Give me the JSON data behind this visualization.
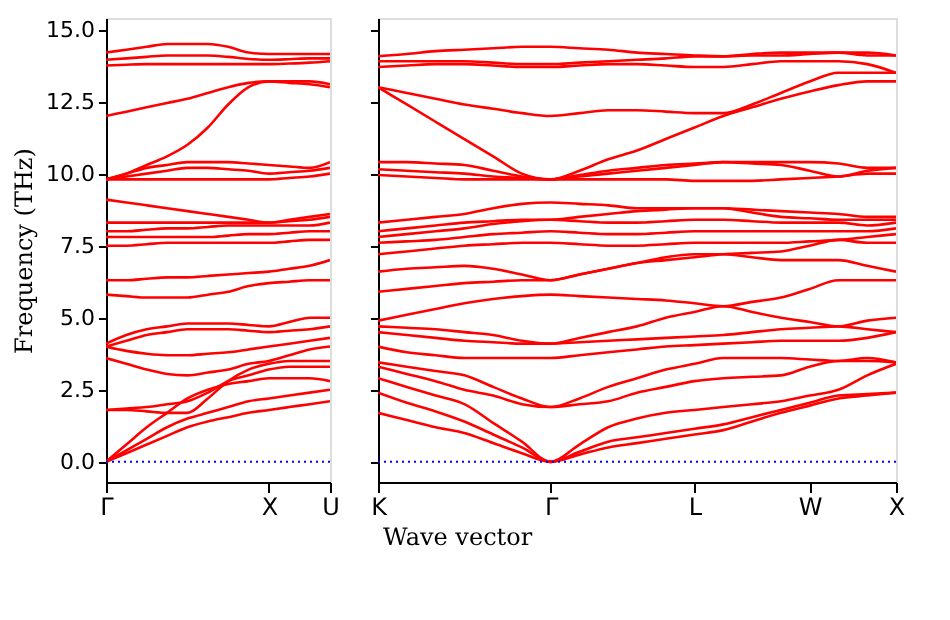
{
  "chart_data": [
    {
      "type": "line",
      "ylabel": "Frequency (THz)",
      "xlabel": "Wave vector",
      "categories": [
        "Γ",
        null,
        null,
        null,
        null,
        null,
        null,
        null,
        "X",
        null,
        null,
        "U"
      ],
      "ylim": [
        -0.7,
        15.4
      ],
      "yticks": [
        {
          "value": 0,
          "label": "0.0"
        },
        {
          "value": 2.5,
          "label": "2.5"
        },
        {
          "value": 5,
          "label": "5.0"
        },
        {
          "value": 7.5,
          "label": "7.5"
        },
        {
          "value": 10,
          "label": "10.0"
        },
        {
          "value": 12.5,
          "label": "12.5"
        },
        {
          "value": 15,
          "label": "15.0"
        }
      ],
      "grid": false,
      "legend": false,
      "marker": "none",
      "line_style": "solid",
      "ref_lines": [
        {
          "axis": "y",
          "value": 0,
          "color": "#0000ff",
          "line_style": "dotted"
        }
      ],
      "series": [
        {
          "color": "#ff0000",
          "values": [
            0,
            0.3,
            0.6,
            0.9,
            1.2,
            1.4,
            1.55,
            1.7,
            1.8,
            1.9,
            2.0,
            2.1
          ]
        },
        {
          "color": "#ff0000",
          "values": [
            0,
            0.4,
            0.8,
            1.2,
            1.5,
            1.7,
            1.9,
            2.1,
            2.2,
            2.3,
            2.4,
            2.5
          ]
        },
        {
          "color": "#ff0000",
          "values": [
            0,
            0.6,
            1.2,
            1.7,
            2.2,
            2.5,
            2.7,
            2.8,
            2.9,
            2.9,
            2.9,
            2.8
          ]
        },
        {
          "color": "#ff0000",
          "values": [
            1.8,
            1.85,
            1.9,
            2.0,
            2.1,
            2.4,
            2.8,
            3.0,
            3.2,
            3.3,
            3.3,
            3.3
          ]
        },
        {
          "color": "#ff0000",
          "values": [
            1.8,
            1.8,
            1.75,
            1.7,
            1.7,
            2.2,
            2.8,
            3.2,
            3.4,
            3.5,
            3.5,
            3.5
          ]
        },
        {
          "color": "#ff0000",
          "values": [
            3.6,
            3.4,
            3.2,
            3.05,
            3.0,
            3.1,
            3.2,
            3.4,
            3.5,
            3.7,
            3.9,
            4.0
          ]
        },
        {
          "color": "#ff0000",
          "values": [
            4.0,
            3.85,
            3.75,
            3.7,
            3.7,
            3.75,
            3.8,
            3.9,
            4.0,
            4.1,
            4.2,
            4.3
          ]
        },
        {
          "color": "#ff0000",
          "values": [
            4.0,
            4.2,
            4.4,
            4.5,
            4.6,
            4.6,
            4.6,
            4.55,
            4.5,
            4.55,
            4.6,
            4.7
          ]
        },
        {
          "color": "#ff0000",
          "values": [
            4.1,
            4.4,
            4.6,
            4.7,
            4.8,
            4.8,
            4.8,
            4.75,
            4.7,
            4.85,
            5.0,
            5.0
          ]
        },
        {
          "color": "#ff0000",
          "values": [
            5.8,
            5.75,
            5.7,
            5.7,
            5.7,
            5.8,
            5.9,
            6.1,
            6.2,
            6.25,
            6.3,
            6.3
          ]
        },
        {
          "color": "#ff0000",
          "values": [
            6.3,
            6.3,
            6.35,
            6.4,
            6.4,
            6.45,
            6.5,
            6.55,
            6.6,
            6.7,
            6.8,
            7.0
          ]
        },
        {
          "color": "#ff0000",
          "values": [
            7.5,
            7.5,
            7.55,
            7.6,
            7.6,
            7.6,
            7.6,
            7.6,
            7.6,
            7.65,
            7.7,
            7.7
          ]
        },
        {
          "color": "#ff0000",
          "values": [
            7.8,
            7.8,
            7.8,
            7.8,
            7.8,
            7.8,
            7.85,
            7.9,
            7.9,
            7.95,
            8.0,
            8.0
          ]
        },
        {
          "color": "#ff0000",
          "values": [
            8.0,
            8.0,
            8.05,
            8.1,
            8.1,
            8.15,
            8.2,
            8.2,
            8.2,
            8.2,
            8.2,
            8.3
          ]
        },
        {
          "color": "#ff0000",
          "values": [
            8.3,
            8.3,
            8.3,
            8.3,
            8.3,
            8.3,
            8.3,
            8.3,
            8.3,
            8.35,
            8.4,
            8.5
          ]
        },
        {
          "color": "#ff0000",
          "values": [
            9.1,
            9.0,
            8.9,
            8.8,
            8.7,
            8.6,
            8.5,
            8.4,
            8.3,
            8.4,
            8.5,
            8.6
          ]
        },
        {
          "color": "#ff0000",
          "values": [
            9.8,
            9.8,
            9.8,
            9.8,
            9.8,
            9.8,
            9.8,
            9.8,
            9.8,
            9.85,
            9.9,
            10.0
          ]
        },
        {
          "color": "#ff0000",
          "values": [
            9.8,
            9.9,
            10.0,
            10.1,
            10.2,
            10.2,
            10.15,
            10.1,
            10.0,
            10.05,
            10.1,
            10.2
          ]
        },
        {
          "color": "#ff0000",
          "values": [
            9.8,
            10.0,
            10.2,
            10.3,
            10.4,
            10.4,
            10.4,
            10.35,
            10.3,
            10.25,
            10.2,
            10.4
          ]
        },
        {
          "color": "#ff0000",
          "values": [
            9.8,
            10.0,
            10.3,
            10.6,
            11.0,
            11.6,
            12.4,
            13.0,
            13.2,
            13.2,
            13.2,
            13.1
          ]
        },
        {
          "color": "#ff0000",
          "values": [
            12.0,
            12.15,
            12.3,
            12.45,
            12.6,
            12.8,
            13.0,
            13.15,
            13.2,
            13.15,
            13.1,
            13.0
          ]
        },
        {
          "color": "#ff0000",
          "values": [
            13.75,
            13.78,
            13.8,
            13.8,
            13.8,
            13.8,
            13.8,
            13.8,
            13.8,
            13.82,
            13.85,
            13.9
          ]
        },
        {
          "color": "#ff0000",
          "values": [
            13.95,
            14.0,
            14.05,
            14.1,
            14.1,
            14.1,
            14.05,
            13.98,
            13.95,
            13.97,
            14.0,
            14.0
          ]
        },
        {
          "color": "#ff0000",
          "values": [
            14.2,
            14.3,
            14.4,
            14.5,
            14.5,
            14.5,
            14.4,
            14.2,
            14.15,
            14.15,
            14.15,
            14.15
          ]
        }
      ]
    },
    {
      "type": "line",
      "tick_labels": "x",
      "categories": [
        "K",
        null,
        null,
        null,
        null,
        null,
        "Γ",
        null,
        null,
        null,
        null,
        "L",
        null,
        null,
        null,
        "W",
        null,
        null,
        "X"
      ],
      "ylim": [
        -0.7,
        15.4
      ],
      "yticks": [
        {
          "value": 0,
          "label": null
        },
        {
          "value": 2.5,
          "label": null
        },
        {
          "value": 5,
          "label": null
        },
        {
          "value": 7.5,
          "label": null
        },
        {
          "value": 10,
          "label": null
        },
        {
          "value": 12.5,
          "label": null
        },
        {
          "value": 15,
          "label": null
        }
      ],
      "grid": false,
      "legend": false,
      "marker": "none",
      "line_style": "solid",
      "ref_lines": [
        {
          "axis": "y",
          "value": 0,
          "color": "#0000ff",
          "line_style": "dotted"
        }
      ],
      "series": [
        {
          "color": "#ff0000",
          "values": [
            1.7,
            1.45,
            1.2,
            1.0,
            0.65,
            0.3,
            0,
            0.25,
            0.5,
            0.65,
            0.8,
            0.95,
            1.1,
            1.4,
            1.7,
            1.95,
            2.2,
            2.3,
            2.4
          ]
        },
        {
          "color": "#ff0000",
          "values": [
            2.4,
            2.05,
            1.75,
            1.4,
            0.95,
            0.5,
            0,
            0.35,
            0.7,
            0.85,
            1.0,
            1.15,
            1.3,
            1.55,
            1.8,
            2.05,
            2.3,
            2.35,
            2.4
          ]
        },
        {
          "color": "#ff0000",
          "values": [
            2.9,
            2.6,
            2.3,
            2.0,
            1.35,
            0.7,
            0,
            0.6,
            1.2,
            1.5,
            1.7,
            1.8,
            1.9,
            2.0,
            2.1,
            2.3,
            2.5,
            3.0,
            3.4
          ]
        },
        {
          "color": "#ff0000",
          "values": [
            3.3,
            3.05,
            2.8,
            2.5,
            2.3,
            2.0,
            1.9,
            2.0,
            2.1,
            2.4,
            2.6,
            2.8,
            2.9,
            2.95,
            3.0,
            3.3,
            3.5,
            3.5,
            3.45
          ]
        },
        {
          "color": "#ff0000",
          "values": [
            3.45,
            3.3,
            3.15,
            3.0,
            2.6,
            2.2,
            1.9,
            2.2,
            2.6,
            2.9,
            3.2,
            3.4,
            3.6,
            3.6,
            3.6,
            3.55,
            3.5,
            3.6,
            3.45
          ]
        },
        {
          "color": "#ff0000",
          "values": [
            4.0,
            3.8,
            3.7,
            3.6,
            3.6,
            3.6,
            3.6,
            3.7,
            3.8,
            3.9,
            4.0,
            4.05,
            4.1,
            4.15,
            4.2,
            4.2,
            4.2,
            4.3,
            4.5
          ]
        },
        {
          "color": "#ff0000",
          "values": [
            4.5,
            4.4,
            4.3,
            4.2,
            4.15,
            4.1,
            4.1,
            4.15,
            4.2,
            4.25,
            4.3,
            4.35,
            4.4,
            4.5,
            4.6,
            4.65,
            4.7,
            4.6,
            4.5
          ]
        },
        {
          "color": "#ff0000",
          "values": [
            4.7,
            4.65,
            4.6,
            4.5,
            4.4,
            4.2,
            4.1,
            4.3,
            4.5,
            4.7,
            5.0,
            5.2,
            5.4,
            5.2,
            5.0,
            4.85,
            4.7,
            4.9,
            5.0
          ]
        },
        {
          "color": "#ff0000",
          "values": [
            4.9,
            5.1,
            5.3,
            5.5,
            5.65,
            5.75,
            5.8,
            5.75,
            5.7,
            5.65,
            5.6,
            5.5,
            5.4,
            5.55,
            5.7,
            6.0,
            6.3,
            6.3,
            6.3
          ]
        },
        {
          "color": "#ff0000",
          "values": [
            5.9,
            6.0,
            6.1,
            6.2,
            6.25,
            6.3,
            6.3,
            6.5,
            6.7,
            6.9,
            7.1,
            7.2,
            7.2,
            7.1,
            7.0,
            7.0,
            7.0,
            6.8,
            6.6
          ]
        },
        {
          "color": "#ff0000",
          "values": [
            6.6,
            6.7,
            6.75,
            6.8,
            6.7,
            6.5,
            6.3,
            6.5,
            6.7,
            6.9,
            7.0,
            7.1,
            7.2,
            7.25,
            7.3,
            7.5,
            7.7,
            7.6,
            7.6
          ]
        },
        {
          "color": "#ff0000",
          "values": [
            7.2,
            7.3,
            7.4,
            7.5,
            7.55,
            7.6,
            7.6,
            7.55,
            7.5,
            7.5,
            7.55,
            7.6,
            7.6,
            7.6,
            7.6,
            7.65,
            7.7,
            7.8,
            7.9
          ]
        },
        {
          "color": "#ff0000",
          "values": [
            7.6,
            7.65,
            7.7,
            7.8,
            7.9,
            7.95,
            8.0,
            7.95,
            7.9,
            7.9,
            7.95,
            8.0,
            8.0,
            8.0,
            8.0,
            8.0,
            8.0,
            8.0,
            8.1
          ]
        },
        {
          "color": "#ff0000",
          "values": [
            7.8,
            7.9,
            8.0,
            8.1,
            8.25,
            8.35,
            8.4,
            8.35,
            8.3,
            8.3,
            8.35,
            8.4,
            8.4,
            8.35,
            8.3,
            8.3,
            8.3,
            8.2,
            8.3
          ]
        },
        {
          "color": "#ff0000",
          "values": [
            8.0,
            8.1,
            8.2,
            8.3,
            8.35,
            8.4,
            8.4,
            8.5,
            8.6,
            8.7,
            8.75,
            8.8,
            8.8,
            8.65,
            8.5,
            8.45,
            8.4,
            8.4,
            8.4
          ]
        },
        {
          "color": "#ff0000",
          "values": [
            8.3,
            8.4,
            8.5,
            8.6,
            8.8,
            8.95,
            9.0,
            8.95,
            8.9,
            8.8,
            8.8,
            8.8,
            8.8,
            8.75,
            8.7,
            8.65,
            8.6,
            8.5,
            8.5
          ]
        },
        {
          "color": "#ff0000",
          "values": [
            9.95,
            9.9,
            9.85,
            9.8,
            9.8,
            9.8,
            9.8,
            9.8,
            9.8,
            9.8,
            9.8,
            9.75,
            9.75,
            9.75,
            9.8,
            9.85,
            9.9,
            10.0,
            10.0
          ]
        },
        {
          "color": "#ff0000",
          "values": [
            10.15,
            10.1,
            10.05,
            10.0,
            9.9,
            9.85,
            9.8,
            9.9,
            10.0,
            10.1,
            10.2,
            10.3,
            10.4,
            10.35,
            10.3,
            10.1,
            9.9,
            10.1,
            10.2
          ]
        },
        {
          "color": "#ff0000",
          "values": [
            10.4,
            10.4,
            10.35,
            10.3,
            10.1,
            9.9,
            9.8,
            9.95,
            10.1,
            10.2,
            10.3,
            10.35,
            10.4,
            10.4,
            10.4,
            10.4,
            10.35,
            10.2,
            10.2
          ]
        },
        {
          "color": "#ff0000",
          "values": [
            13.0,
            12.4,
            11.8,
            11.2,
            10.6,
            10.0,
            9.8,
            10.1,
            10.5,
            10.8,
            11.2,
            11.6,
            12.0,
            12.3,
            12.6,
            12.85,
            13.07,
            13.2,
            13.2
          ]
        },
        {
          "color": "#ff0000",
          "values": [
            13.0,
            12.8,
            12.6,
            12.4,
            12.25,
            12.1,
            12.0,
            12.1,
            12.2,
            12.2,
            12.15,
            12.1,
            12.1,
            12.4,
            12.8,
            13.2,
            13.5,
            13.5,
            13.5
          ]
        },
        {
          "color": "#ff0000",
          "values": [
            13.7,
            13.75,
            13.8,
            13.8,
            13.75,
            13.7,
            13.7,
            13.75,
            13.8,
            13.8,
            13.75,
            13.7,
            13.7,
            13.8,
            13.9,
            13.9,
            13.9,
            13.8,
            13.5
          ]
        },
        {
          "color": "#ff0000",
          "values": [
            13.9,
            13.9,
            13.9,
            13.9,
            13.85,
            13.8,
            13.8,
            13.85,
            13.9,
            13.95,
            14.0,
            14.07,
            14.07,
            14.1,
            14.1,
            14.15,
            14.2,
            14.1,
            14.1
          ]
        },
        {
          "color": "#ff0000",
          "values": [
            14.07,
            14.15,
            14.25,
            14.3,
            14.35,
            14.4,
            14.4,
            14.35,
            14.3,
            14.2,
            14.15,
            14.1,
            14.07,
            14.15,
            14.2,
            14.2,
            14.2,
            14.2,
            14.1
          ]
        }
      ]
    }
  ]
}
